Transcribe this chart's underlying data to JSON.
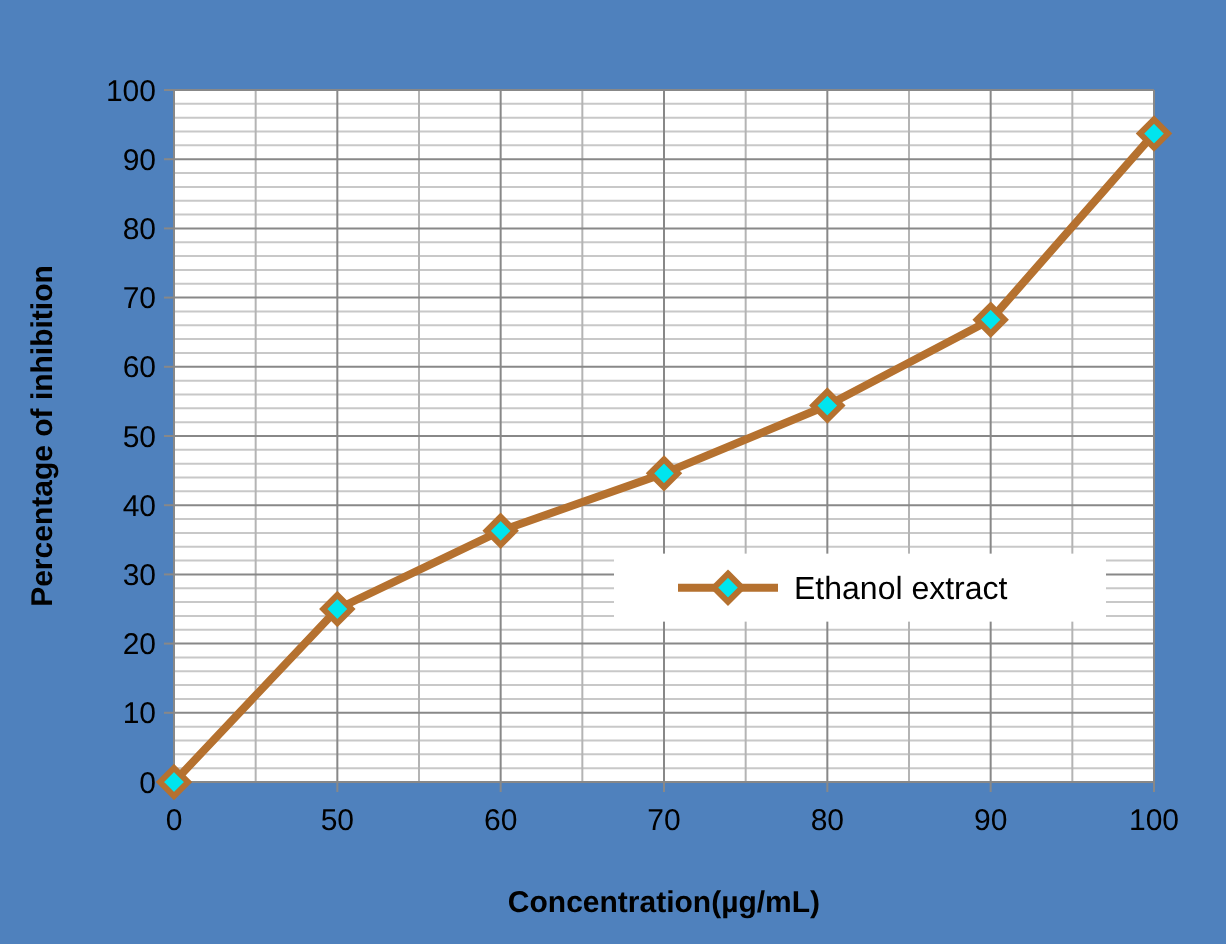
{
  "chart_data": {
    "type": "line",
    "xlabel": "Concentration(µg/mL)",
    "ylabel": "Percentage of inhibition",
    "categories": [
      "0",
      "50",
      "60",
      "70",
      "80",
      "90",
      "100"
    ],
    "series": [
      {
        "name": "Ethanol extract",
        "color": "#b5712f",
        "values": [
          0,
          25,
          36.3,
          44.6,
          54.4,
          66.8,
          93.7
        ]
      }
    ],
    "ylim": [
      0,
      100
    ],
    "yticks": [
      0,
      10,
      20,
      30,
      40,
      50,
      60,
      70,
      80,
      90,
      100
    ],
    "grid": true,
    "legend": "right",
    "marker": "diamond",
    "line_style": "solid"
  }
}
